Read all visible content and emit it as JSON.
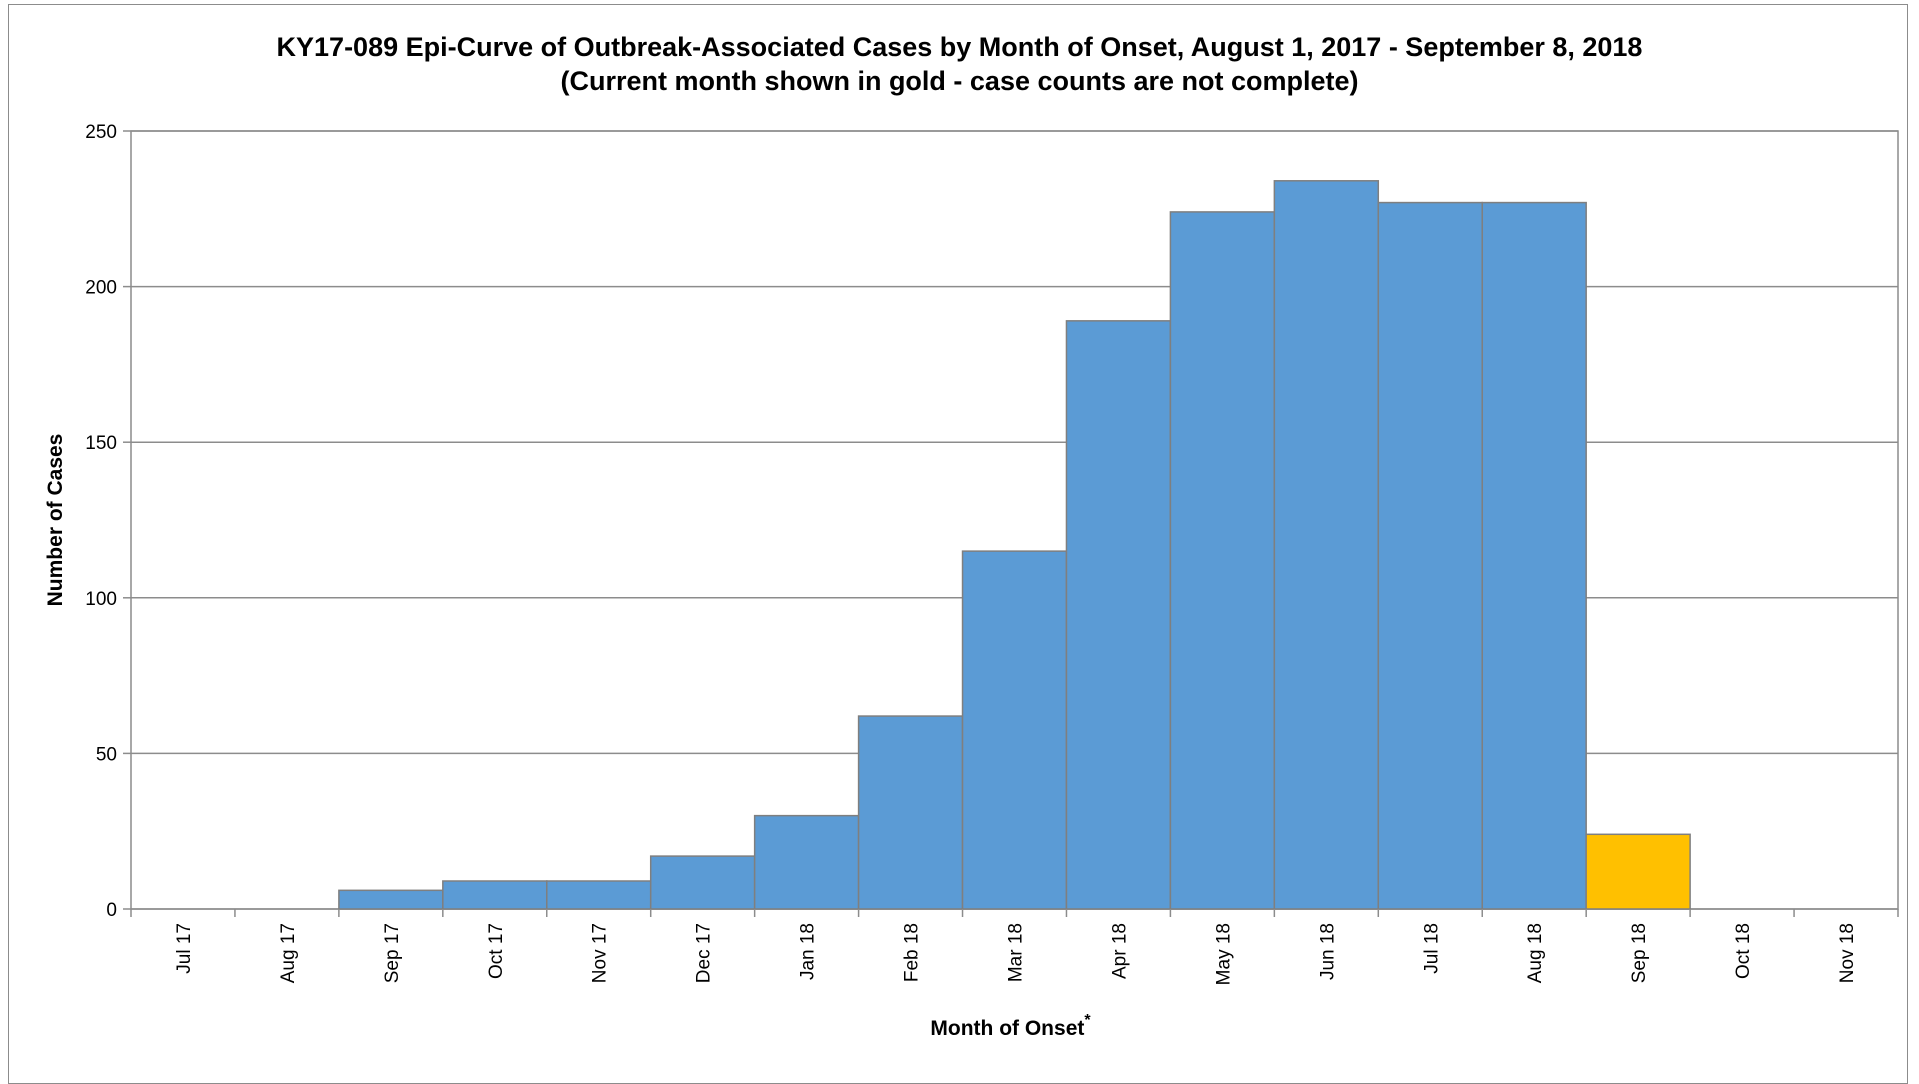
{
  "chart_data": {
    "type": "bar",
    "title": "KY17-089 Epi-Curve of Outbreak-Associated Cases by Month of Onset, August 1, 2017 - September 8, 2018",
    "subtitle": "(Current month shown in gold - case counts are not complete)",
    "xlabel": "Month of Onset",
    "xlabel_marker": "*",
    "ylabel": "Number of Cases",
    "ylim": [
      0,
      250
    ],
    "yticks": [
      0,
      50,
      100,
      150,
      200,
      250
    ],
    "grid": true,
    "categories": [
      "Jul 17",
      "Aug 17",
      "Sep 17",
      "Oct 17",
      "Nov 17",
      "Dec 17",
      "Jan 18",
      "Feb 18",
      "Mar 18",
      "Apr 18",
      "May 18",
      "Jun 18",
      "Jul 18",
      "Aug 18",
      "Sep 18",
      "Oct 18",
      "Nov 18"
    ],
    "values": [
      0,
      0,
      6,
      9,
      9,
      17,
      30,
      62,
      115,
      189,
      224,
      234,
      227,
      227,
      24,
      0,
      0
    ],
    "highlight_index": 14,
    "colors": {
      "bar": "#5b9bd5",
      "highlight": "#ffc000",
      "bar_edge": "#7f7f7f",
      "grid": "#8c8c8c"
    }
  }
}
